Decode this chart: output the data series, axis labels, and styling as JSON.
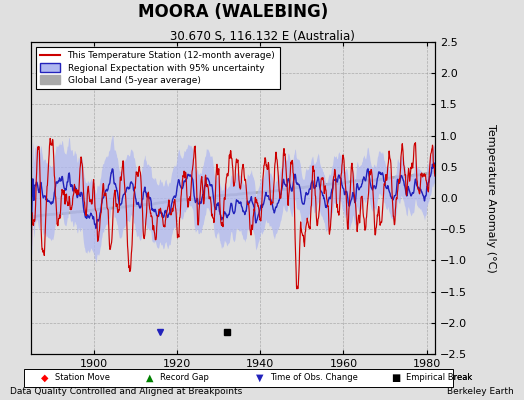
{
  "title": "MOORA (WALEBING)",
  "subtitle": "30.670 S, 116.132 E (Australia)",
  "ylabel": "Temperature Anomaly (°C)",
  "xlabel_note": "Data Quality Controlled and Aligned at Breakpoints",
  "credit": "Berkeley Earth",
  "year_start": 1885,
  "year_end": 1982,
  "ylim": [
    -2.5,
    2.5
  ],
  "yticks": [
    -2.5,
    -2,
    -1.5,
    -1,
    -0.5,
    0,
    0.5,
    1,
    1.5,
    2,
    2.5
  ],
  "xticks": [
    1900,
    1920,
    1940,
    1960,
    1980
  ],
  "color_station": "#cc0000",
  "color_regional": "#2222bb",
  "color_regional_fill": "#b0b8f0",
  "color_global": "#aaaaaa",
  "background_color": "#e0e0e0",
  "legend_items": [
    "This Temperature Station (12-month average)",
    "Regional Expectation with 95% uncertainty",
    "Global Land (5-year average)"
  ],
  "marker_events": {
    "time_obs_change_year": 1916,
    "empirical_break_year": 1932,
    "station_move_years": [],
    "record_gap_years": []
  }
}
